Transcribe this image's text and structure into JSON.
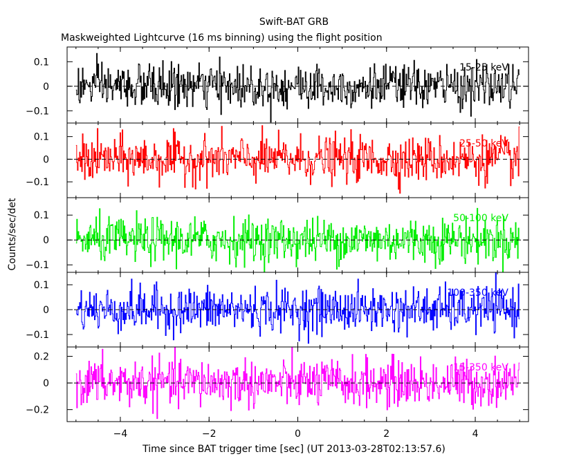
{
  "chart_data": {
    "type": "line",
    "title": "Swift-BAT GRB",
    "subtitle": "Maskweighted Lightcurve (16 ms binning) using the flight position",
    "xlabel": "Time since BAT trigger time [sec] (UT 2013-03-28T02:13:57.6)",
    "ylabel": "Counts/sec/det",
    "xlim": [
      -5.2,
      5.2
    ],
    "x_ticks": [
      {
        "value": -4,
        "label": "−4"
      },
      {
        "value": -2,
        "label": "−2"
      },
      {
        "value": 0,
        "label": "0"
      },
      {
        "value": 2,
        "label": "2"
      },
      {
        "value": 4,
        "label": "4"
      }
    ],
    "x_data_range": [
      -5.0,
      5.0
    ],
    "bin_width_s": 0.016,
    "grid": false,
    "panels": [
      {
        "name": "15-25 keV",
        "color": "#000000",
        "ylim": [
          -0.15,
          0.16
        ],
        "yticks": [
          {
            "value": 0.1,
            "label": "0.1"
          },
          {
            "value": 0,
            "label": "0"
          },
          {
            "value": -0.1,
            "label": "−0.1"
          }
        ],
        "mean": 0.0,
        "sigma": 0.045
      },
      {
        "name": "25-50 keV",
        "color": "#ff0000",
        "ylim": [
          -0.17,
          0.16
        ],
        "yticks": [
          {
            "value": 0.1,
            "label": "0.1"
          },
          {
            "value": 0,
            "label": "0"
          },
          {
            "value": -0.1,
            "label": "−0.1"
          }
        ],
        "mean": 0.0,
        "sigma": 0.05
      },
      {
        "name": "50-100 keV",
        "color": "#00ee00",
        "ylim": [
          -0.13,
          0.17
        ],
        "yticks": [
          {
            "value": 0.1,
            "label": "0.1"
          },
          {
            "value": 0,
            "label": "0"
          },
          {
            "value": -0.1,
            "label": "−0.1"
          }
        ],
        "mean": 0.0,
        "sigma": 0.045
      },
      {
        "name": "100-350 keV",
        "color": "#0000ff",
        "ylim": [
          -0.15,
          0.15
        ],
        "yticks": [
          {
            "value": 0.1,
            "label": "0.1"
          },
          {
            "value": 0,
            "label": "0"
          },
          {
            "value": -0.1,
            "label": "−0.1"
          }
        ],
        "mean": 0.0,
        "sigma": 0.045
      },
      {
        "name": "15-350 keV",
        "color": "#ff00ff",
        "ylim": [
          -0.29,
          0.27
        ],
        "yticks": [
          {
            "value": 0.2,
            "label": "0.2"
          },
          {
            "value": 0,
            "label": "0"
          },
          {
            "value": -0.2,
            "label": "−0.2"
          }
        ],
        "mean": 0.0,
        "sigma": 0.09
      }
    ]
  }
}
